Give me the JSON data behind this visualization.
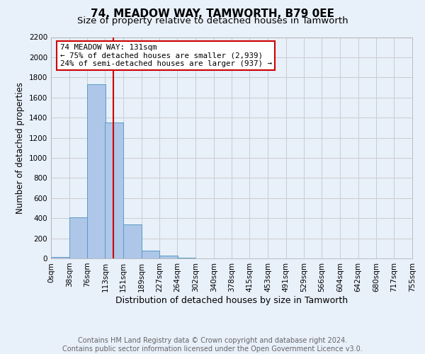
{
  "title": "74, MEADOW WAY, TAMWORTH, B79 0EE",
  "subtitle": "Size of property relative to detached houses in Tamworth",
  "xlabel": "Distribution of detached houses by size in Tamworth",
  "ylabel": "Number of detached properties",
  "bar_left_edges": [
    0,
    38,
    76,
    113,
    151,
    189,
    227,
    264,
    302,
    340,
    378,
    415,
    453,
    491,
    529,
    566,
    604,
    642,
    680,
    717
  ],
  "bar_heights": [
    15,
    410,
    1730,
    1350,
    340,
    75,
    25,
    5,
    0,
    0,
    0,
    0,
    0,
    0,
    0,
    0,
    0,
    0,
    0,
    0
  ],
  "bin_width": 38,
  "bar_color": "#aec6e8",
  "bar_edge_color": "#5a9cc5",
  "grid_color": "#cccccc",
  "bg_color": "#e8f0fa",
  "vline_x": 131,
  "vline_color": "#cc0000",
  "xlim": [
    0,
    755
  ],
  "ylim": [
    0,
    2200
  ],
  "yticks": [
    0,
    200,
    400,
    600,
    800,
    1000,
    1200,
    1400,
    1600,
    1800,
    2000,
    2200
  ],
  "xtick_labels": [
    "0sqm",
    "38sqm",
    "76sqm",
    "113sqm",
    "151sqm",
    "189sqm",
    "227sqm",
    "264sqm",
    "302sqm",
    "340sqm",
    "378sqm",
    "415sqm",
    "453sqm",
    "491sqm",
    "529sqm",
    "566sqm",
    "604sqm",
    "642sqm",
    "680sqm",
    "717sqm",
    "755sqm"
  ],
  "xtick_positions": [
    0,
    38,
    76,
    113,
    151,
    189,
    227,
    264,
    302,
    340,
    378,
    415,
    453,
    491,
    529,
    566,
    604,
    642,
    680,
    717,
    755
  ],
  "annotation_title": "74 MEADOW WAY: 131sqm",
  "annotation_line1": "← 75% of detached houses are smaller (2,939)",
  "annotation_line2": "24% of semi-detached houses are larger (937) →",
  "annotation_box_color": "#ffffff",
  "annotation_box_edge": "#cc0000",
  "footer_line1": "Contains HM Land Registry data © Crown copyright and database right 2024.",
  "footer_line2": "Contains public sector information licensed under the Open Government Licence v3.0.",
  "title_fontsize": 11,
  "subtitle_fontsize": 9.5,
  "xlabel_fontsize": 9,
  "ylabel_fontsize": 8.5,
  "tick_fontsize": 7.5,
  "footer_fontsize": 7
}
